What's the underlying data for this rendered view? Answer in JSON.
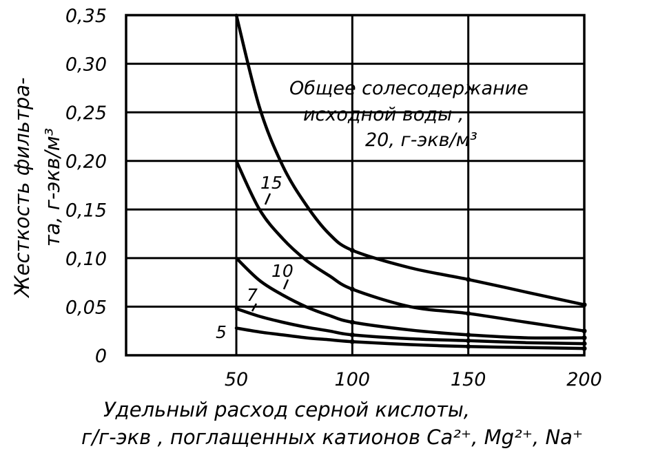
{
  "chart_data": {
    "type": "line",
    "xlabel_line1": "Удельный расход серной кислоты,",
    "xlabel_line2": "г/г-экв , поглащенных катионов Ca²⁺, Mg²⁺, Na⁺",
    "ylabel_line1": "Жесткость фильтра-",
    "ylabel_line2": "та, г-экв/м³",
    "xlim": [
      0,
      200
    ],
    "ylim": [
      0,
      0.35
    ],
    "x_ticks": [
      50,
      100,
      150,
      200
    ],
    "x_tick_labels": [
      "50",
      "100",
      "150",
      "200"
    ],
    "y_ticks": [
      0,
      0.05,
      0.1,
      0.15,
      0.2,
      0.25,
      0.3,
      0.35
    ],
    "y_tick_labels": [
      "0",
      "0,05",
      "0,10",
      "0,15",
      "0,20",
      "0,25",
      "0,30",
      "0,35"
    ],
    "grid": true,
    "legend_title_line1": "Общее солесодержание",
    "legend_title_line2": "исходной воды ,",
    "legend_title_line3": "20, г-экв/м³",
    "x": [
      50,
      60,
      70,
      80,
      90,
      100,
      125,
      150,
      175,
      200
    ],
    "series": [
      {
        "name": "20",
        "values": [
          0.35,
          0.255,
          0.195,
          0.155,
          0.125,
          0.108,
          0.09,
          0.078,
          0.065,
          0.052
        ]
      },
      {
        "name": "15",
        "values": [
          0.2,
          0.15,
          0.12,
          0.098,
          0.082,
          0.068,
          0.05,
          0.043,
          0.034,
          0.025
        ]
      },
      {
        "name": "10",
        "values": [
          0.1,
          0.077,
          0.062,
          0.05,
          0.041,
          0.034,
          0.026,
          0.021,
          0.018,
          0.018
        ]
      },
      {
        "name": "7",
        "values": [
          0.048,
          0.04,
          0.034,
          0.029,
          0.025,
          0.021,
          0.017,
          0.015,
          0.013,
          0.012
        ]
      },
      {
        "name": "5",
        "values": [
          0.028,
          0.024,
          0.021,
          0.018,
          0.016,
          0.014,
          0.011,
          0.009,
          0.008,
          0.007
        ]
      }
    ]
  }
}
